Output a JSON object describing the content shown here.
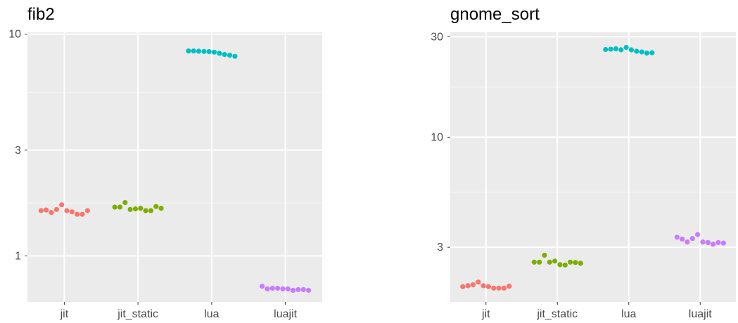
{
  "chart_data": [
    {
      "type": "scatter",
      "title": "fib2",
      "xlabel": "",
      "ylabel": "",
      "y_scale": "log",
      "ylim": [
        0.62,
        10.2
      ],
      "categories": [
        "jit",
        "jit_static",
        "lua",
        "luajit"
      ],
      "y_ticks": [
        1,
        3,
        10
      ],
      "y_tick_labels": [
        "1",
        "3",
        "10"
      ],
      "grid": true,
      "legend": "none",
      "colors": [
        "#F8766D",
        "#7CAE00",
        "#00BFC4",
        "#C77CFF"
      ],
      "series": [
        {
          "category": "jit",
          "values": [
            1.6,
            1.61,
            1.57,
            1.62,
            1.7,
            1.6,
            1.58,
            1.54,
            1.54,
            1.6
          ]
        },
        {
          "category": "jit_static",
          "values": [
            1.66,
            1.66,
            1.74,
            1.62,
            1.63,
            1.64,
            1.6,
            1.6,
            1.67,
            1.64
          ]
        },
        {
          "category": "lua",
          "values": [
            8.4,
            8.4,
            8.38,
            8.36,
            8.34,
            8.3,
            8.2,
            8.1,
            8.04,
            7.95
          ]
        },
        {
          "category": "luajit",
          "values": [
            0.73,
            0.71,
            0.715,
            0.715,
            0.71,
            0.71,
            0.7,
            0.705,
            0.705,
            0.7
          ]
        }
      ]
    },
    {
      "type": "scatter",
      "title": "gnome_sort",
      "xlabel": "",
      "ylabel": "",
      "y_scale": "log",
      "ylim": [
        1.65,
        31.5
      ],
      "categories": [
        "jit",
        "jit_static",
        "lua",
        "luajit"
      ],
      "y_ticks": [
        3,
        10,
        30
      ],
      "y_tick_labels": [
        "3",
        "10",
        "30"
      ],
      "grid": true,
      "legend": "none",
      "colors": [
        "#F8766D",
        "#7CAE00",
        "#00BFC4",
        "#C77CFF"
      ],
      "series": [
        {
          "category": "jit",
          "values": [
            1.95,
            1.97,
            1.99,
            2.05,
            1.97,
            1.95,
            1.92,
            1.92,
            1.92,
            1.96
          ]
        },
        {
          "category": "jit_static",
          "values": [
            2.55,
            2.55,
            2.75,
            2.55,
            2.58,
            2.48,
            2.47,
            2.55,
            2.54,
            2.52
          ]
        },
        {
          "category": "lua",
          "values": [
            26.1,
            26.2,
            26.3,
            26.0,
            26.7,
            26.0,
            25.6,
            25.4,
            25.1,
            25.2
          ]
        },
        {
          "category": "luajit",
          "values": [
            3.35,
            3.28,
            3.18,
            3.3,
            3.45,
            3.18,
            3.16,
            3.1,
            3.16,
            3.14
          ]
        }
      ]
    }
  ]
}
